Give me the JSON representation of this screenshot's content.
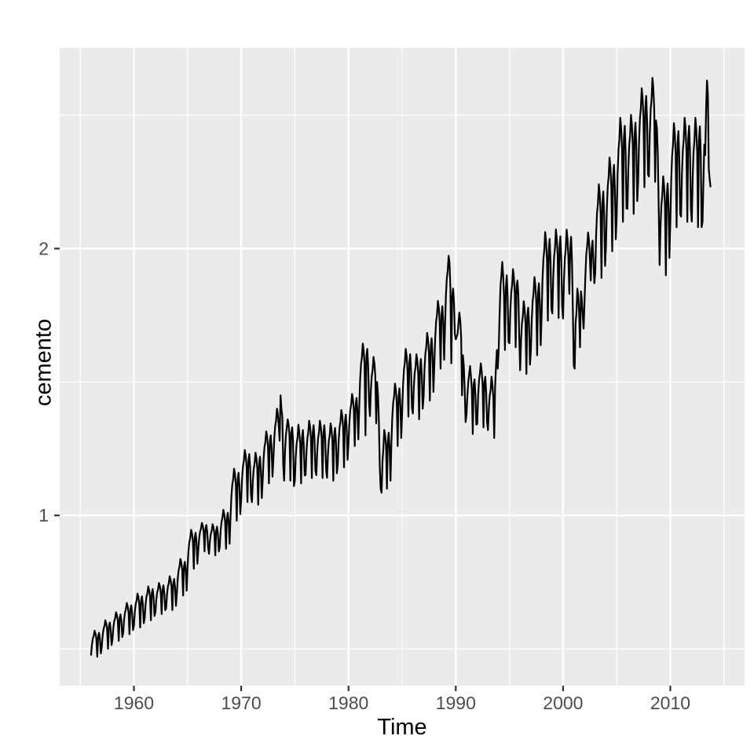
{
  "chart_data": {
    "type": "line",
    "title": "",
    "xlabel": "Time",
    "ylabel": "cemento",
    "legend_position": "none",
    "grid": true,
    "x_major_ticks": [
      1960,
      1970,
      1980,
      1990,
      2000,
      2010
    ],
    "x_minor_gridlines": [
      1955,
      1965,
      1975,
      1985,
      1995,
      2005,
      2015
    ],
    "y_major_ticks": [
      1,
      2
    ],
    "y_minor_gridlines": [
      0.5,
      1.5,
      2.5
    ],
    "x_tick_labels": [
      "1960",
      "1970",
      "1980",
      "1990",
      "2000",
      "2010"
    ],
    "y_tick_labels": [
      "1",
      "2"
    ],
    "xlim": [
      1953.08,
      2016.92
    ],
    "ylim": [
      0.362,
      2.752
    ],
    "colors": {
      "page_background": "#FFFFFF",
      "panel_background": "#EBEBEB",
      "gridline": "#FFFFFF",
      "series_line": "#000000",
      "tick_mark": "#333333",
      "tick_label": "#4D4D4D",
      "axis_title": "#000000"
    },
    "series": [
      {
        "name": "cemento",
        "start_year": 1956,
        "frequency": 12,
        "values": [
          0.475,
          0.515,
          0.538,
          0.548,
          0.568,
          0.558,
          0.538,
          0.47,
          0.548,
          0.56,
          0.535,
          0.483,
          0.506,
          0.55,
          0.574,
          0.585,
          0.607,
          0.596,
          0.574,
          0.5,
          0.585,
          0.599,
          0.572,
          0.514,
          0.536,
          0.58,
          0.604,
          0.615,
          0.637,
          0.626,
          0.604,
          0.53,
          0.615,
          0.629,
          0.602,
          0.544,
          0.561,
          0.609,
          0.636,
          0.648,
          0.672,
          0.66,
          0.636,
          0.555,
          0.648,
          0.663,
          0.633,
          0.57,
          0.587,
          0.639,
          0.668,
          0.681,
          0.707,
          0.694,
          0.668,
          0.58,
          0.681,
          0.697,
          0.665,
          0.596,
          0.614,
          0.666,
          0.695,
          0.708,
          0.734,
          0.721,
          0.695,
          0.607,
          0.708,
          0.724,
          0.692,
          0.623,
          0.636,
          0.684,
          0.711,
          0.723,
          0.747,
          0.735,
          0.711,
          0.63,
          0.723,
          0.738,
          0.708,
          0.645,
          0.652,
          0.704,
          0.733,
          0.746,
          0.772,
          0.759,
          0.733,
          0.645,
          0.746,
          0.762,
          0.73,
          0.661,
          0.707,
          0.763,
          0.795,
          0.809,
          0.837,
          0.823,
          0.795,
          0.7,
          0.809,
          0.826,
          0.791,
          0.718,
          0.808,
          0.868,
          0.901,
          0.916,
          0.946,
          0.931,
          0.901,
          0.8,
          0.916,
          0.935,
          0.898,
          0.819,
          0.871,
          0.915,
          0.939,
          0.95,
          0.972,
          0.961,
          0.939,
          0.865,
          0.95,
          0.964,
          0.937,
          0.879,
          0.856,
          0.904,
          0.931,
          0.943,
          0.967,
          0.955,
          0.931,
          0.85,
          0.943,
          0.958,
          0.928,
          0.865,
          0.883,
          0.943,
          0.976,
          0.991,
          1.021,
          1.006,
          0.976,
          0.875,
          0.991,
          1.01,
          0.973,
          0.894,
          0.99,
          1.07,
          1.115,
          1.135,
          1.175,
          1.155,
          1.115,
          0.98,
          1.135,
          1.16,
          1.11,
          1.005,
          1.06,
          1.14,
          1.185,
          1.205,
          1.245,
          1.225,
          1.185,
          1.05,
          1.205,
          1.23,
          1.18,
          1.075,
          1.05,
          1.13,
          1.175,
          1.195,
          1.235,
          1.215,
          1.175,
          1.04,
          1.195,
          1.22,
          1.17,
          1.065,
          1.13,
          1.21,
          1.255,
          1.275,
          1.315,
          1.295,
          1.255,
          1.12,
          1.275,
          1.3,
          1.25,
          1.145,
          1.21,
          1.29,
          1.335,
          1.355,
          1.4,
          1.38,
          1.335,
          1.28,
          1.45,
          1.4,
          1.37,
          1.19,
          1.13,
          1.24,
          1.3,
          1.33,
          1.36,
          1.34,
          1.3,
          1.13,
          1.31,
          1.33,
          1.28,
          1.11,
          1.13,
          1.22,
          1.27,
          1.29,
          1.34,
          1.31,
          1.27,
          1.12,
          1.29,
          1.32,
          1.26,
          1.15,
          1.151,
          1.239,
          1.289,
          1.311,
          1.355,
          1.333,
          1.289,
          1.14,
          1.311,
          1.338,
          1.283,
          1.168,
          1.151,
          1.239,
          1.289,
          1.311,
          1.355,
          1.333,
          1.289,
          1.14,
          1.311,
          1.338,
          1.283,
          1.168,
          1.141,
          1.229,
          1.279,
          1.301,
          1.345,
          1.323,
          1.279,
          1.13,
          1.301,
          1.328,
          1.273,
          1.158,
          1.191,
          1.279,
          1.329,
          1.351,
          1.395,
          1.373,
          1.329,
          1.18,
          1.351,
          1.378,
          1.323,
          1.208,
          1.27,
          1.35,
          1.395,
          1.415,
          1.455,
          1.435,
          1.395,
          1.26,
          1.415,
          1.44,
          1.39,
          1.285,
          1.403,
          1.507,
          1.566,
          1.592,
          1.644,
          1.618,
          1.566,
          1.3,
          1.592,
          1.624,
          1.559,
          1.423,
          1.372,
          1.468,
          1.522,
          1.546,
          1.594,
          1.57,
          1.522,
          1.345,
          1.5,
          1.45,
          1.35,
          1.18,
          1.1,
          1.085,
          1.2,
          1.25,
          1.32,
          1.3,
          1.26,
          1.1,
          1.28,
          1.31,
          1.25,
          1.13,
          1.272,
          1.368,
          1.422,
          1.446,
          1.494,
          1.47,
          1.422,
          1.26,
          1.446,
          1.476,
          1.416,
          1.29,
          1.383,
          1.487,
          1.546,
          1.572,
          1.624,
          1.598,
          1.546,
          1.37,
          1.572,
          1.604,
          1.539,
          1.403,
          1.382,
          1.478,
          1.532,
          1.556,
          1.604,
          1.58,
          1.532,
          1.36,
          1.556,
          1.586,
          1.526,
          1.4,
          1.443,
          1.547,
          1.606,
          1.632,
          1.684,
          1.658,
          1.606,
          1.43,
          1.632,
          1.664,
          1.599,
          1.463,
          1.563,
          1.667,
          1.726,
          1.752,
          1.804,
          1.778,
          1.726,
          1.55,
          1.752,
          1.784,
          1.719,
          1.583,
          1.714,
          1.826,
          1.889,
          1.917,
          1.973,
          1.945,
          1.85,
          1.57,
          1.82,
          1.85,
          1.8,
          1.68,
          1.66,
          1.67,
          1.68,
          1.72,
          1.76,
          1.73,
          1.67,
          1.45,
          1.6,
          1.56,
          1.47,
          1.35,
          1.38,
          1.45,
          1.5,
          1.53,
          1.56,
          1.52,
          1.47,
          1.305,
          1.49,
          1.51,
          1.45,
          1.34,
          1.343,
          1.447,
          1.506,
          1.532,
          1.57,
          1.54,
          1.49,
          1.33,
          1.5,
          1.52,
          1.46,
          1.35,
          1.32,
          1.4,
          1.45,
          1.47,
          1.52,
          1.49,
          1.44,
          1.29,
          1.48,
          1.56,
          1.62,
          1.55,
          1.62,
          1.75,
          1.86,
          1.9,
          1.95,
          1.9,
          1.82,
          1.62,
          1.85,
          1.9,
          1.82,
          1.65,
          1.645,
          1.765,
          1.833,
          1.863,
          1.923,
          1.893,
          1.833,
          1.63,
          1.863,
          1.88,
          1.825,
          1.668,
          1.544,
          1.656,
          1.719,
          1.747,
          1.803,
          1.775,
          1.719,
          1.53,
          1.747,
          1.779,
          1.712,
          1.565,
          1.615,
          1.735,
          1.803,
          1.833,
          1.893,
          1.863,
          1.803,
          1.6,
          1.833,
          1.87,
          1.795,
          1.638,
          1.747,
          1.883,
          1.96,
          1.994,
          2.062,
          2.028,
          1.96,
          1.73,
          1.994,
          2.036,
          1.951,
          1.773,
          1.757,
          1.893,
          1.97,
          2.004,
          2.072,
          2.038,
          1.97,
          1.74,
          2.004,
          2.046,
          1.961,
          1.783,
          1.738,
          1.882,
          1.963,
          1.999,
          2.071,
          2.035,
          1.963,
          1.83,
          1.999,
          2.044,
          1.954,
          1.76,
          1.56,
          1.55,
          1.72,
          1.76,
          1.85,
          1.82,
          1.76,
          1.63,
          1.84,
          1.81,
          1.75,
          1.7,
          1.8,
          1.9,
          1.98,
          2.01,
          2.06,
          2.03,
          1.96,
          1.88,
          2.0,
          2.03,
          1.95,
          1.87,
          1.908,
          2.052,
          2.133,
          2.169,
          2.241,
          2.205,
          2.133,
          1.89,
          2.169,
          2.214,
          2.124,
          1.935,
          2.008,
          2.152,
          2.233,
          2.269,
          2.341,
          2.305,
          2.233,
          1.99,
          2.269,
          2.314,
          2.224,
          2.035,
          2.12,
          2.28,
          2.37,
          2.41,
          2.49,
          2.45,
          2.37,
          2.1,
          2.41,
          2.46,
          2.36,
          2.15,
          2.149,
          2.301,
          2.387,
          2.425,
          2.501,
          2.463,
          2.387,
          2.13,
          2.425,
          2.472,
          2.377,
          2.178,
          2.249,
          2.401,
          2.487,
          2.525,
          2.601,
          2.563,
          2.487,
          2.23,
          2.525,
          2.572,
          2.477,
          2.278,
          2.27,
          2.43,
          2.52,
          2.56,
          2.64,
          2.6,
          2.52,
          2.25,
          2.48,
          2.45,
          2.35,
          2.15,
          1.938,
          2.082,
          2.163,
          2.199,
          2.271,
          2.235,
          2.163,
          1.9,
          2.199,
          2.244,
          2.154,
          1.965,
          2.1,
          2.26,
          2.35,
          2.39,
          2.47,
          2.43,
          2.35,
          2.08,
          2.39,
          2.44,
          2.34,
          2.13,
          2.12,
          2.28,
          2.37,
          2.41,
          2.49,
          2.45,
          2.37,
          2.1,
          2.41,
          2.46,
          2.36,
          2.15,
          2.101,
          2.269,
          2.364,
          2.406,
          2.49,
          2.448,
          2.364,
          2.08,
          2.406,
          2.458,
          2.353,
          2.08,
          2.1,
          2.25,
          2.39,
          2.35,
          2.52,
          2.63,
          2.58,
          2.3,
          2.26,
          2.23
        ]
      }
    ]
  }
}
